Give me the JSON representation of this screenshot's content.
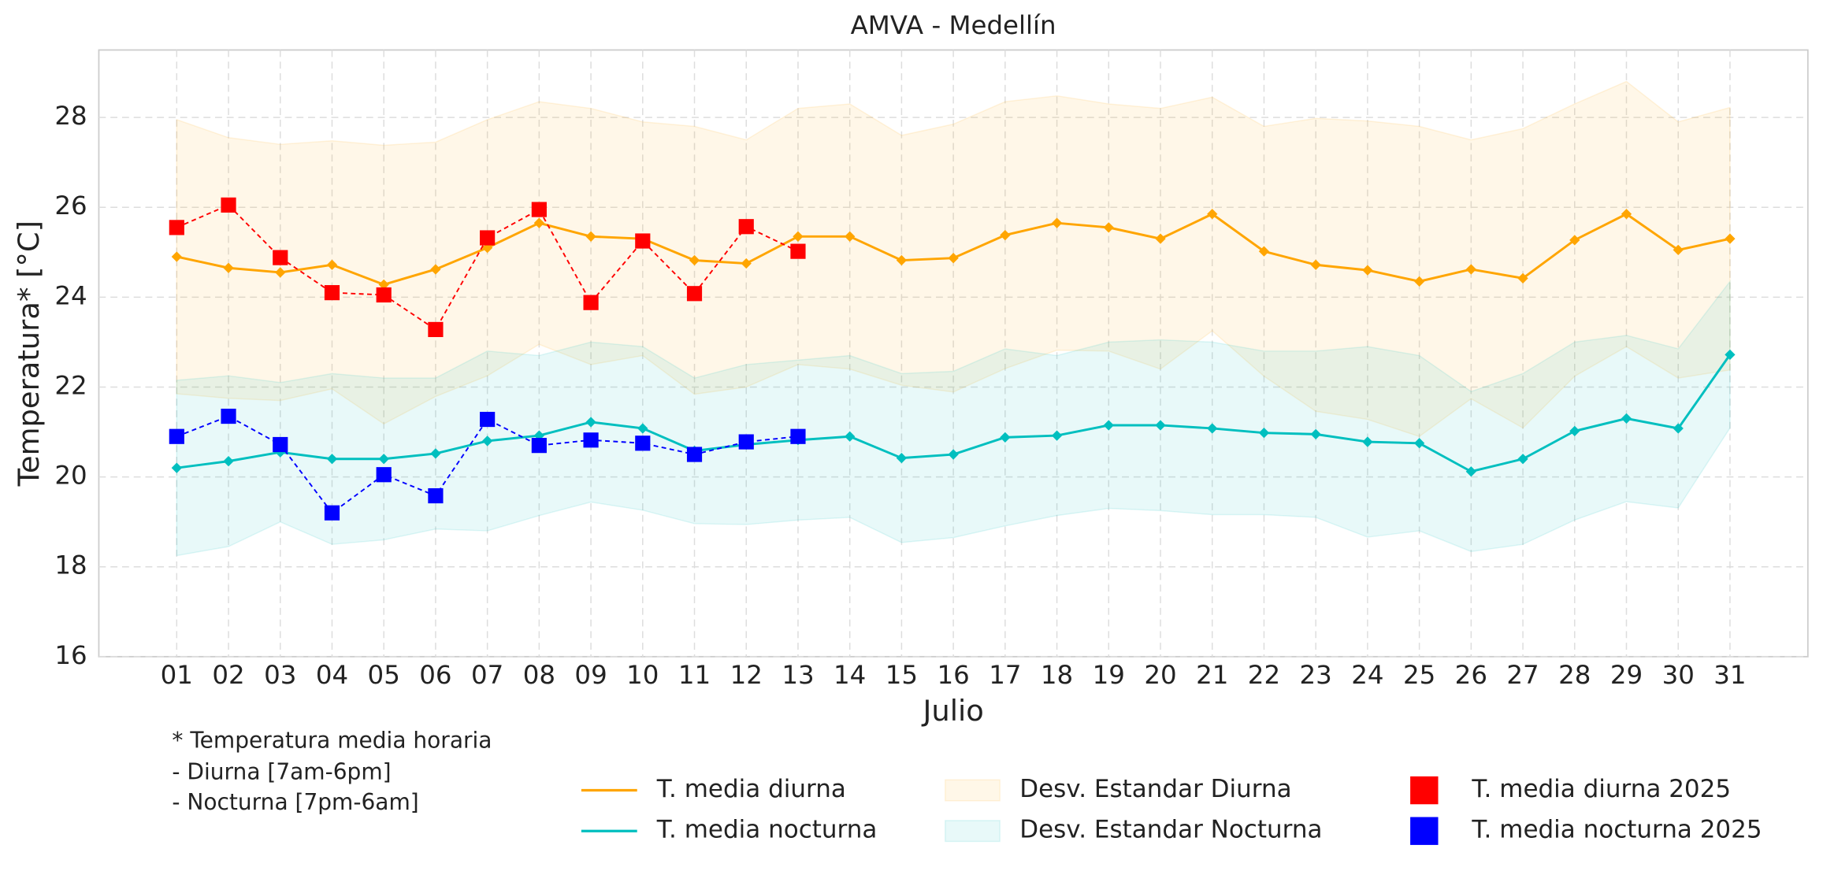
{
  "chart_data": {
    "type": "line",
    "title": "AMVA - Medellín",
    "x_label": "Julio",
    "y_label": "Temperatura* [°C]",
    "annotations": [
      {
        "text": "* Temperatura media horaria",
        "color": "#000000"
      },
      {
        "text": "- Diurna [7am-6pm]",
        "color": "#ff0000"
      },
      {
        "text": "- Nocturna [7pm-6am]",
        "color": "#0000ff"
      }
    ],
    "categories": [
      "01",
      "02",
      "03",
      "04",
      "05",
      "06",
      "07",
      "08",
      "09",
      "10",
      "11",
      "12",
      "13",
      "14",
      "15",
      "16",
      "17",
      "18",
      "19",
      "20",
      "21",
      "22",
      "23",
      "24",
      "25",
      "26",
      "27",
      "28",
      "29",
      "30",
      "31"
    ],
    "ylim": [
      16,
      29.5
    ],
    "yticks": [
      16,
      18,
      20,
      22,
      24,
      26,
      28
    ],
    "grid": true,
    "series": [
      {
        "name": "T. media diurna",
        "color": "#ffa500",
        "kind": "line",
        "marker": "diamond",
        "values": [
          24.9,
          24.65,
          24.55,
          24.72,
          24.28,
          24.62,
          25.1,
          25.65,
          25.35,
          25.3,
          24.82,
          24.75,
          25.35,
          25.35,
          24.82,
          24.87,
          25.38,
          25.65,
          25.55,
          25.3,
          25.85,
          25.02,
          24.72,
          24.6,
          24.35,
          24.62,
          24.42,
          25.27,
          25.85,
          25.05,
          25.3
        ]
      },
      {
        "name": "T. media nocturna",
        "color": "#00bfbf",
        "kind": "line",
        "marker": "diamond",
        "values": [
          20.2,
          20.35,
          20.55,
          20.4,
          20.4,
          20.52,
          20.8,
          20.92,
          21.22,
          21.08,
          20.58,
          20.72,
          20.82,
          20.9,
          20.42,
          20.5,
          20.88,
          20.92,
          21.15,
          21.15,
          21.08,
          20.98,
          20.95,
          20.78,
          20.75,
          20.12,
          20.4,
          21.02,
          21.3,
          21.08,
          22.72
        ]
      },
      {
        "name": "Desv. Estandar Diurna",
        "color": "#ffa500",
        "kind": "band",
        "of": 0,
        "values": [
          3.05,
          2.9,
          2.85,
          2.76,
          3.1,
          2.83,
          2.85,
          2.7,
          2.85,
          2.6,
          2.98,
          2.75,
          2.85,
          2.95,
          2.78,
          2.98,
          2.97,
          2.83,
          2.75,
          2.9,
          2.6,
          2.78,
          3.26,
          3.32,
          3.45,
          2.88,
          3.33,
          3.03,
          2.95,
          2.85,
          2.92
        ]
      },
      {
        "name": "Desv. Estandar Nocturna",
        "color": "#00bfbf",
        "kind": "band",
        "of": 1,
        "values": [
          1.95,
          1.9,
          1.55,
          1.9,
          1.8,
          1.68,
          2.0,
          1.78,
          1.78,
          1.82,
          1.62,
          1.78,
          1.78,
          1.8,
          1.88,
          1.85,
          1.97,
          1.78,
          1.85,
          1.9,
          1.92,
          1.82,
          1.85,
          2.12,
          1.95,
          1.78,
          1.9,
          1.98,
          1.85,
          1.77,
          1.63
        ]
      },
      {
        "name": "T. media diurna 2025",
        "color": "#ff0000",
        "kind": "dashed",
        "marker": "square",
        "values": [
          25.55,
          26.05,
          24.88,
          24.1,
          24.05,
          23.28,
          25.32,
          25.95,
          23.88,
          25.25,
          24.08,
          25.57,
          25.02,
          null,
          null,
          null,
          null,
          null,
          null,
          null,
          null,
          null,
          null,
          null,
          null,
          null,
          null,
          null,
          null,
          null,
          null
        ]
      },
      {
        "name": "T. media nocturna 2025",
        "color": "#0000ff",
        "kind": "dashed",
        "marker": "square",
        "values": [
          20.9,
          21.35,
          20.72,
          19.2,
          20.05,
          19.58,
          21.28,
          20.7,
          20.82,
          20.75,
          20.5,
          20.78,
          20.9,
          null,
          null,
          null,
          null,
          null,
          null,
          null,
          null,
          null,
          null,
          null,
          null,
          null,
          null,
          null,
          null,
          null,
          null
        ]
      }
    ]
  }
}
